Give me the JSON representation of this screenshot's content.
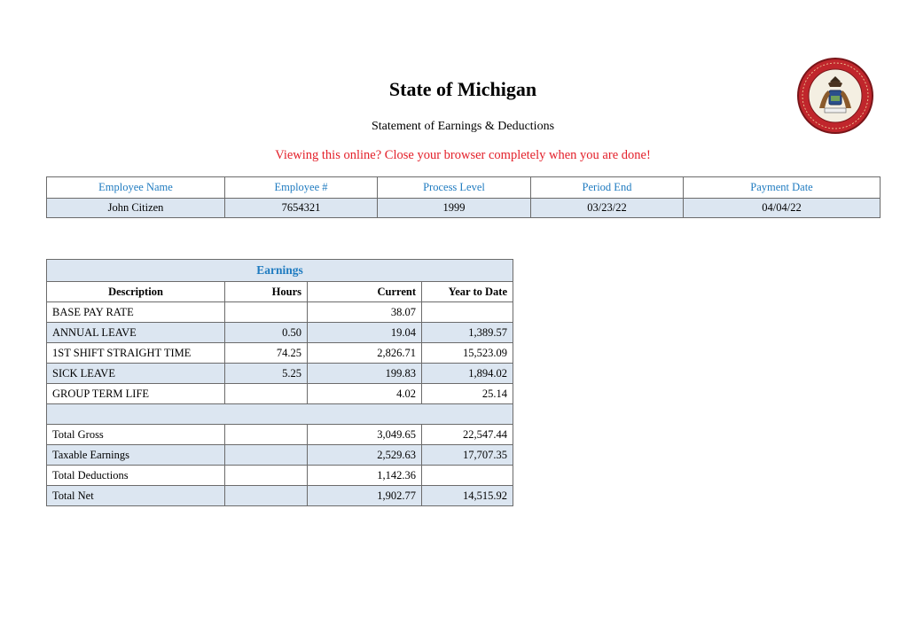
{
  "header": {
    "title": "State of Michigan",
    "subtitle": "Statement of Earnings & Deductions",
    "warning": "Viewing this online? Close your browser completely when you are done!"
  },
  "employee": {
    "headers": [
      "Employee Name",
      "Employee #",
      "Process Level",
      "Period End",
      "Payment Date"
    ],
    "values": [
      "John Citizen",
      "7654321",
      "1999",
      "03/23/22",
      "04/04/22"
    ]
  },
  "earnings": {
    "title": "Earnings",
    "columns": [
      "Description",
      "Hours",
      "Current",
      "Year to Date"
    ],
    "rows": [
      [
        "BASE PAY RATE",
        "",
        "38.07",
        ""
      ],
      [
        "ANNUAL LEAVE",
        "0.50",
        "19.04",
        "1,389.57"
      ],
      [
        "1ST SHIFT STRAIGHT TIME",
        "74.25",
        "2,826.71",
        "15,523.09"
      ],
      [
        "SICK LEAVE",
        "5.25",
        "199.83",
        "1,894.02"
      ],
      [
        "GROUP TERM LIFE",
        "",
        "4.02",
        "25.14"
      ]
    ],
    "totals": [
      [
        "Total Gross",
        "",
        "3,049.65",
        "22,547.44"
      ],
      [
        "Taxable Earnings",
        "",
        "2,529.63",
        "17,707.35"
      ],
      [
        "Total Deductions",
        "",
        "1,142.36",
        ""
      ],
      [
        "Total Net",
        "",
        "1,902.77",
        "14,515.92"
      ]
    ]
  },
  "seal": {
    "ring_color": "#c0262c",
    "inner_color": "#2b4f8c",
    "icon": "state-seal-icon"
  }
}
